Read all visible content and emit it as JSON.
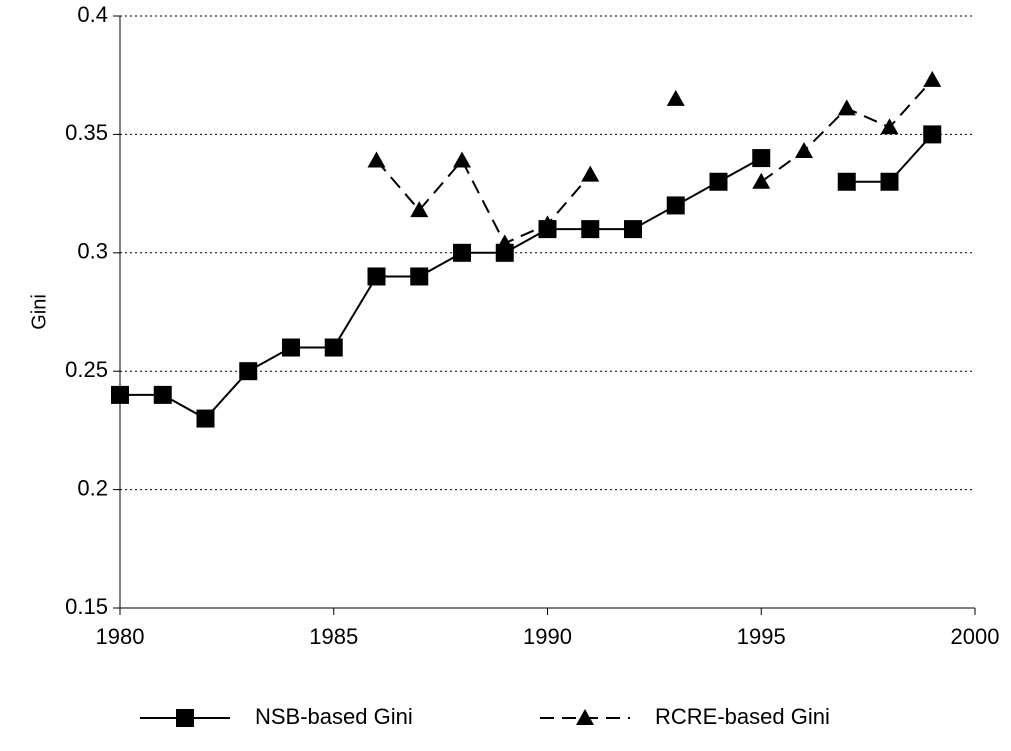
{
  "chart_data": {
    "type": "line",
    "y_label": "Gini",
    "x": [
      1980,
      1981,
      1982,
      1983,
      1984,
      1985,
      1986,
      1987,
      1988,
      1989,
      1990,
      1991,
      1992,
      1993,
      1994,
      1995,
      1996,
      1997,
      1998,
      1999
    ],
    "series": [
      {
        "name": "NSB-based Gini",
        "color": "#000000",
        "marker": "square",
        "dash": false,
        "values": [
          0.24,
          0.24,
          0.23,
          0.25,
          0.26,
          0.26,
          0.29,
          0.29,
          0.3,
          0.3,
          0.31,
          0.31,
          0.31,
          0.32,
          0.33,
          0.34,
          null,
          0.33,
          0.33,
          0.35
        ]
      },
      {
        "name": "RCRE-based Gini",
        "color": "#000000",
        "marker": "triangle",
        "dash": true,
        "values": [
          null,
          null,
          null,
          null,
          null,
          null,
          0.339,
          0.318,
          0.339,
          0.304,
          0.312,
          0.333,
          null,
          0.365,
          null,
          0.33,
          0.343,
          0.361,
          0.353,
          0.373
        ]
      }
    ],
    "xlim": [
      1980,
      2000
    ],
    "xticks": [
      1980,
      1985,
      1990,
      1995,
      2000
    ],
    "ylim": [
      0.15,
      0.4
    ],
    "yticks": [
      0.15,
      0.2,
      0.25,
      0.3,
      0.35,
      0.4
    ],
    "grid": true,
    "legend": "bottom"
  }
}
